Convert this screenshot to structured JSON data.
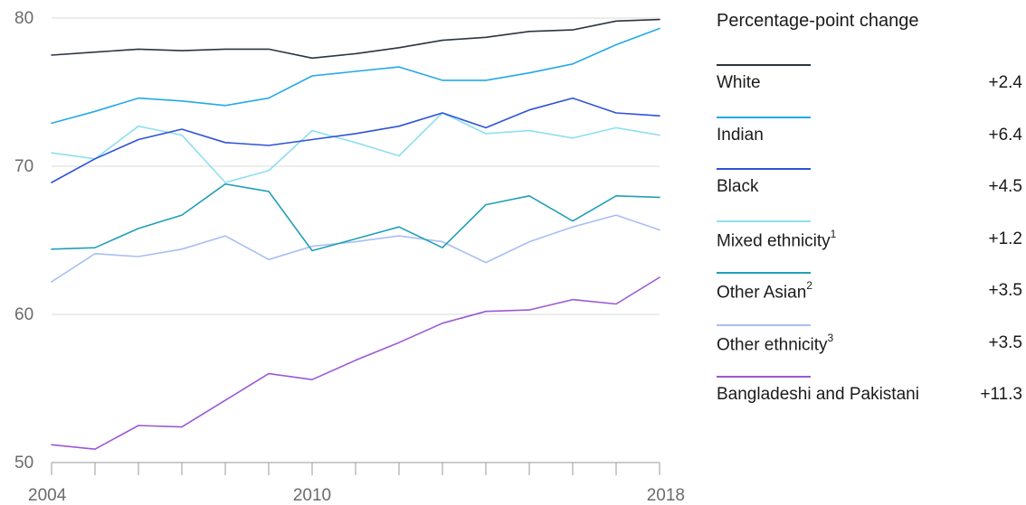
{
  "chart_data": {
    "type": "line",
    "x": [
      2004,
      2005,
      2006,
      2007,
      2008,
      2009,
      2010,
      2011,
      2012,
      2013,
      2014,
      2015,
      2016,
      2017,
      2018
    ],
    "x_tick_labels": [
      "2004",
      "2010",
      "2018"
    ],
    "y_ticks": [
      50,
      60,
      70,
      80
    ],
    "ylim": [
      50,
      80
    ],
    "grid": true,
    "legend_title": "Percentage-point change",
    "legend_position": "right",
    "series": [
      {
        "name": "White",
        "footnote": "",
        "change": "+2.4",
        "color": "#2c3440",
        "values": [
          77.5,
          77.7,
          77.9,
          77.8,
          77.9,
          77.9,
          77.3,
          77.6,
          78.0,
          78.5,
          78.7,
          79.1,
          79.2,
          79.8,
          79.9
        ]
      },
      {
        "name": "Indian",
        "footnote": "",
        "change": "+6.4",
        "color": "#23a9e8",
        "values": [
          72.9,
          73.7,
          74.6,
          74.4,
          74.1,
          74.6,
          76.1,
          76.4,
          76.7,
          75.8,
          75.8,
          76.3,
          76.9,
          78.2,
          79.3
        ]
      },
      {
        "name": "Black",
        "footnote": "",
        "change": "+4.5",
        "color": "#2e52d9",
        "values": [
          68.9,
          70.5,
          71.8,
          72.5,
          71.6,
          71.4,
          71.8,
          72.2,
          72.7,
          73.6,
          72.6,
          73.8,
          74.6,
          73.6,
          73.4
        ]
      },
      {
        "name": "Mixed ethnicity",
        "footnote": "1",
        "change": "+1.2",
        "color": "#8fdff0",
        "values": [
          70.9,
          70.5,
          72.7,
          72.1,
          68.9,
          69.7,
          72.4,
          71.6,
          70.7,
          73.6,
          72.2,
          72.4,
          71.9,
          72.6,
          72.1
        ]
      },
      {
        "name": "Other Asian",
        "footnote": "2",
        "change": "+3.5",
        "color": "#21a0b6",
        "values": [
          64.4,
          64.5,
          65.8,
          66.7,
          68.8,
          68.3,
          64.3,
          65.1,
          65.9,
          64.5,
          67.4,
          68.0,
          66.3,
          68.0,
          67.9
        ]
      },
      {
        "name": "Other ethnicity",
        "footnote": "3",
        "change": "+3.5",
        "color": "#a9bff2",
        "values": [
          62.2,
          64.1,
          63.9,
          64.4,
          65.3,
          63.7,
          64.6,
          64.9,
          65.3,
          64.9,
          63.5,
          64.9,
          65.9,
          66.7,
          65.7
        ]
      },
      {
        "name": "Bangladeshi and Pakistani",
        "footnote": "",
        "change": "+11.3",
        "color": "#9b59d6",
        "values": [
          51.2,
          50.9,
          52.5,
          52.4,
          54.2,
          56.0,
          55.6,
          56.9,
          58.1,
          59.4,
          60.2,
          60.3,
          61.0,
          60.7,
          62.5
        ]
      }
    ]
  }
}
